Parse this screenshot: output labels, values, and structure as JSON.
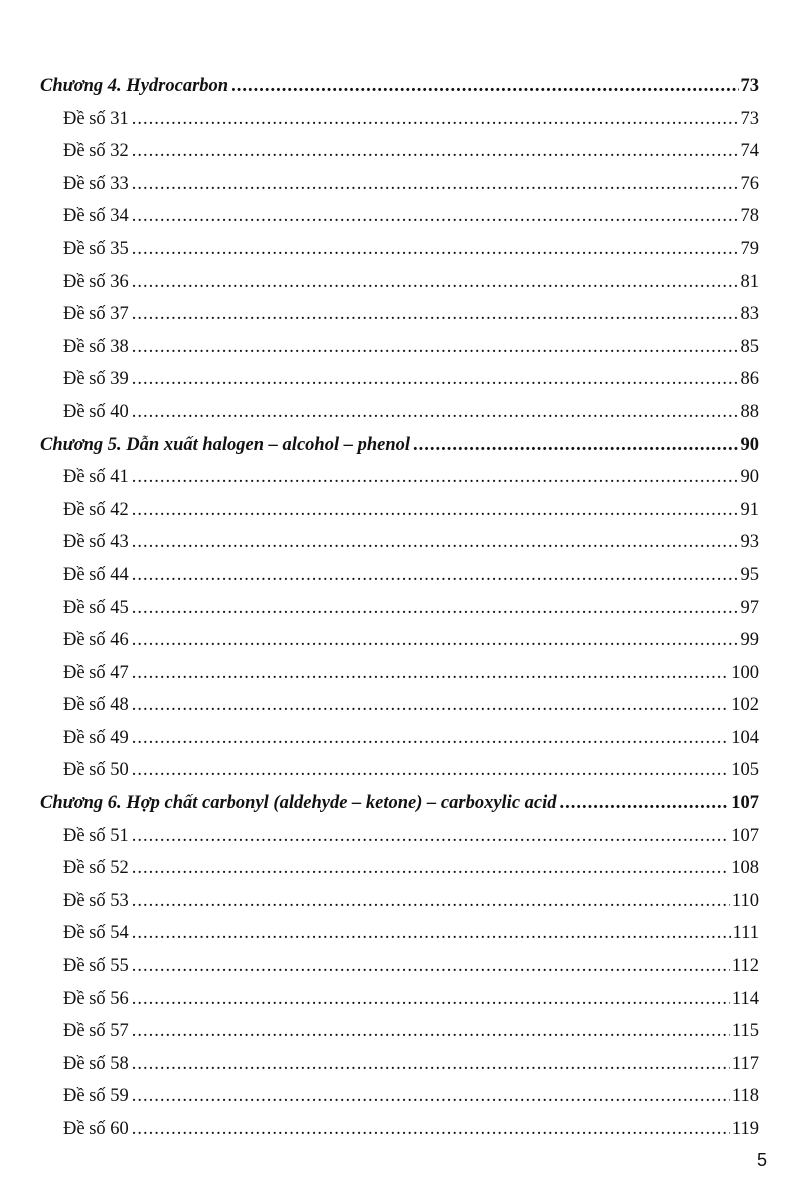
{
  "toc": [
    {
      "type": "chapter",
      "title": "Chương 4. Hydrocarbon",
      "page": "73"
    },
    {
      "type": "entry",
      "title": "Đề số 31",
      "page": "73"
    },
    {
      "type": "entry",
      "title": "Đề số 32",
      "page": "74"
    },
    {
      "type": "entry",
      "title": "Đề số 33",
      "page": "76"
    },
    {
      "type": "entry",
      "title": "Đề số 34",
      "page": "78"
    },
    {
      "type": "entry",
      "title": "Đề số 35",
      "page": "79"
    },
    {
      "type": "entry",
      "title": "Đề số 36",
      "page": "81"
    },
    {
      "type": "entry",
      "title": "Đề số 37",
      "page": "83"
    },
    {
      "type": "entry",
      "title": "Đề số 38",
      "page": "85"
    },
    {
      "type": "entry",
      "title": "Đề số 39",
      "page": "86"
    },
    {
      "type": "entry",
      "title": "Đề số 40",
      "page": "88"
    },
    {
      "type": "chapter",
      "title": "Chương 5. Dẫn xuất halogen – alcohol – phenol",
      "page": "90"
    },
    {
      "type": "entry",
      "title": "Đề số 41",
      "page": "90"
    },
    {
      "type": "entry",
      "title": "Đề số 42",
      "page": "91"
    },
    {
      "type": "entry",
      "title": "Đề số 43",
      "page": "93"
    },
    {
      "type": "entry",
      "title": "Đề số 44",
      "page": "95"
    },
    {
      "type": "entry",
      "title": "Đề số 45",
      "page": "97"
    },
    {
      "type": "entry",
      "title": "Đề số 46",
      "page": "99"
    },
    {
      "type": "entry",
      "title": "Đề số 47",
      "page": "100"
    },
    {
      "type": "entry",
      "title": "Đề số 48",
      "page": "102"
    },
    {
      "type": "entry",
      "title": "Đề số 49",
      "page": "104"
    },
    {
      "type": "entry",
      "title": "Đề số 50",
      "page": "105"
    },
    {
      "type": "chapter",
      "title": "Chương 6. Hợp chất carbonyl (aldehyde – ketone) – carboxylic acid",
      "page": "107"
    },
    {
      "type": "entry",
      "title": "Đề số 51",
      "page": "107"
    },
    {
      "type": "entry",
      "title": "Đề số 52",
      "page": "108"
    },
    {
      "type": "entry",
      "title": "Đề số 53",
      "page": "110"
    },
    {
      "type": "entry",
      "title": "Đề số 54",
      "page": "111"
    },
    {
      "type": "entry",
      "title": "Đề số 55",
      "page": "112"
    },
    {
      "type": "entry",
      "title": "Đề số 56",
      "page": "114"
    },
    {
      "type": "entry",
      "title": "Đề số 57",
      "page": "115"
    },
    {
      "type": "entry",
      "title": "Đề số 58",
      "page": "117"
    },
    {
      "type": "entry",
      "title": "Đề số 59",
      "page": "118"
    },
    {
      "type": "entry",
      "title": "Đề số 60",
      "page": "119"
    }
  ],
  "page_number": "5"
}
